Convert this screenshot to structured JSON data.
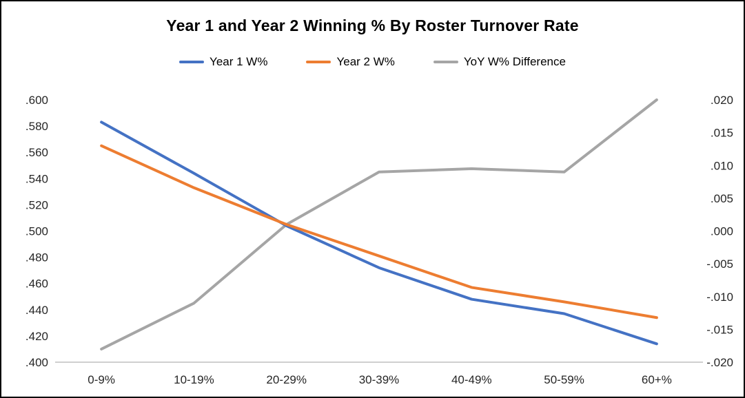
{
  "chart": {
    "title": "Year 1 and Year 2 Winning % By Roster Turnover Rate"
  },
  "chart_data": {
    "type": "line",
    "title": "Year 1 and Year 2 Winning % By Roster Turnover Rate",
    "categories": [
      "0-9%",
      "10-19%",
      "20-29%",
      "30-39%",
      "40-49%",
      "50-59%",
      "60+%"
    ],
    "series": [
      {
        "name": "Year 1 W%",
        "axis": "left",
        "color": "#4472C4",
        "values": [
          0.583,
          0.544,
          0.504,
          0.472,
          0.448,
          0.437,
          0.414
        ]
      },
      {
        "name": "Year 2 W%",
        "axis": "left",
        "color": "#ED7D31",
        "values": [
          0.565,
          0.533,
          0.505,
          0.481,
          0.457,
          0.446,
          0.434
        ]
      },
      {
        "name": "YoY W% Difference",
        "axis": "right",
        "color": "#A5A5A5",
        "values": [
          -0.018,
          -0.011,
          0.001,
          0.009,
          0.0095,
          0.009,
          0.02
        ]
      }
    ],
    "left_axis": {
      "min": 0.4,
      "max": 0.6,
      "tick_labels": [
        ".400",
        ".420",
        ".440",
        ".460",
        ".480",
        ".500",
        ".520",
        ".540",
        ".560",
        ".580",
        ".600"
      ]
    },
    "right_axis": {
      "min": -0.02,
      "max": 0.02,
      "tick_labels": [
        "-.020",
        "-.015",
        "-.010",
        "-.005",
        ".000",
        ".005",
        ".010",
        ".015",
        ".020"
      ]
    },
    "legend_position": "top",
    "grid": false,
    "axis_line_color": "#BFBFBF"
  }
}
